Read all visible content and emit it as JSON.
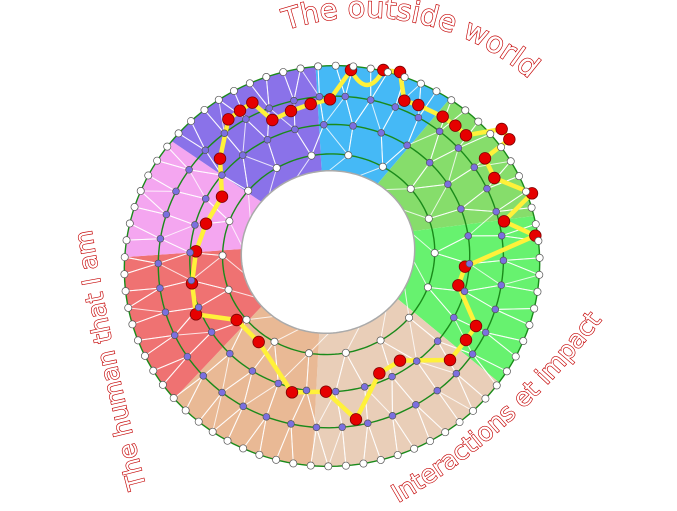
{
  "labels": {
    "top": "The outside world",
    "left": "The human that I am",
    "bottom_right": "Interactions et impact"
  },
  "colors": {
    "sectors": [
      "#45b9f6",
      "#86dd6b",
      "#67f26f",
      "#e9ceb8",
      "#e9b995",
      "#ef7272",
      "#f4a6f0",
      "#8a72e9"
    ],
    "ring_lines": "#1a8a1a",
    "path": "#fff13a",
    "path_nodes": "#e60000",
    "inner_nodes": "#7b6fe0",
    "label_outline": "#c40000"
  }
}
